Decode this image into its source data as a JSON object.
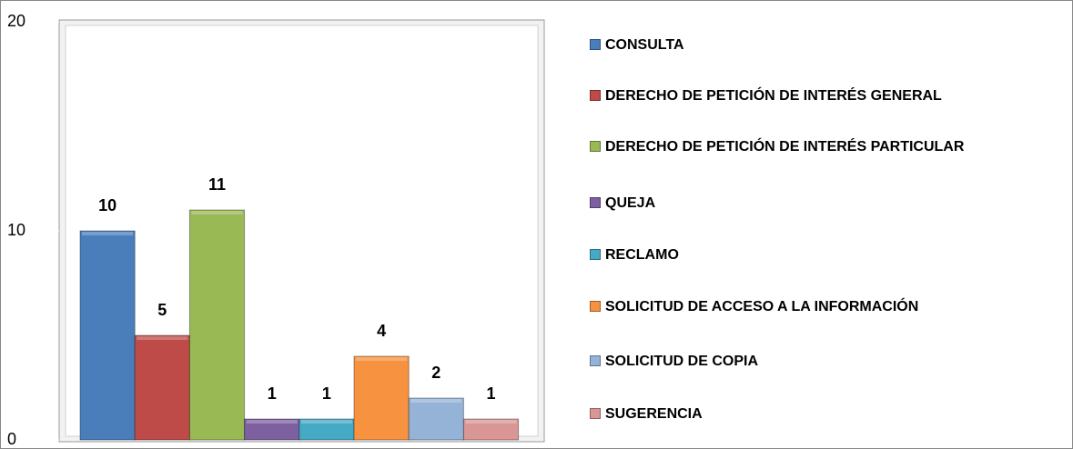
{
  "chart_data": {
    "type": "bar",
    "series": [
      {
        "name": "CONSULTA",
        "color": "#4a7ebb",
        "values": [
          10
        ]
      },
      {
        "name": "DERECHO DE PETICIÓN DE INTERÉS GENERAL",
        "color": "#be4b48",
        "values": [
          5
        ]
      },
      {
        "name": "DERECHO DE PETICIÓN DE INTERÉS PARTICULAR",
        "color": "#98b954",
        "values": [
          11
        ]
      },
      {
        "name": "QUEJA",
        "color": "#7d60a0",
        "values": [
          1
        ]
      },
      {
        "name": "RECLAMO",
        "color": "#46aac5",
        "values": [
          1
        ]
      },
      {
        "name": "SOLICITUD DE ACCESO A LA INFORMACIÓN",
        "color": "#f69240",
        "values": [
          4
        ]
      },
      {
        "name": "SOLICITUD DE COPIA",
        "color": "#95b3d7",
        "values": [
          2
        ]
      },
      {
        "name": "SUGERENCIA",
        "color": "#d99694",
        "values": [
          1
        ]
      }
    ],
    "ylim": [
      0,
      20
    ],
    "yticks": [
      0,
      10,
      20
    ],
    "grid": false,
    "legend": "right"
  }
}
